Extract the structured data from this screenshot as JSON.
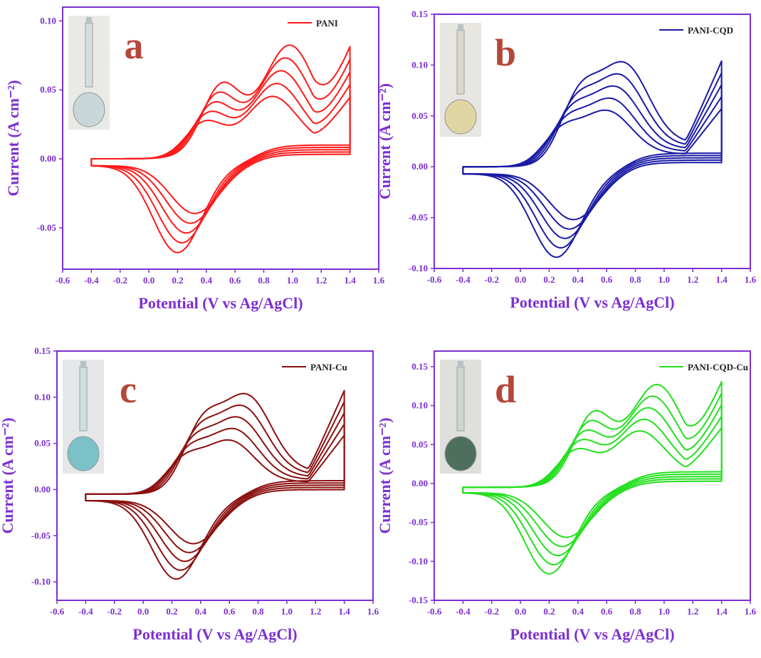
{
  "figure": {
    "xlabel": "Potential  (V vs Ag/AgCl)",
    "ylabel": "Current  (A  cm⁻²)",
    "axis_color": "#7b2fd1",
    "letter_color": "#b5473a"
  },
  "chart_data": [
    {
      "type": "line",
      "panel_letter": "a",
      "legend": "PANI",
      "color": "#ff1a1a",
      "xlim": [
        -0.6,
        1.6
      ],
      "ylim": [
        -0.08,
        0.11
      ],
      "xticks": [
        -0.6,
        -0.4,
        -0.2,
        0.0,
        0.2,
        0.4,
        0.6,
        0.8,
        1.0,
        1.2,
        1.4,
        1.6
      ],
      "yticks": [
        -0.05,
        0.0,
        0.05,
        0.1
      ],
      "xlabel": "Potential  (V vs Ag/AgCl)",
      "ylabel": "Current  (A  cm⁻²)",
      "cv": {
        "x_start": -0.4,
        "x_end": 1.4,
        "base_ox": 0.0,
        "base_red": -0.005,
        "cycles": 5,
        "ox_peak_1": [
          0.5,
          0.05
        ],
        "ox_peak_2": [
          0.98,
          0.075
        ],
        "red_peak": [
          0.2,
          -0.063
        ],
        "vertex": [
          1.4,
          0.088
        ]
      },
      "grid": false,
      "legend_position": "top-right"
    },
    {
      "type": "line",
      "panel_letter": "b",
      "legend": "PANI-CQD",
      "color": "#1a1aa6",
      "xlim": [
        -0.6,
        1.6
      ],
      "ylim": [
        -0.1,
        0.15
      ],
      "xticks": [
        -0.6,
        -0.4,
        -0.2,
        0.0,
        0.2,
        0.4,
        0.6,
        0.8,
        1.0,
        1.2,
        1.4,
        1.6
      ],
      "yticks": [
        -0.1,
        -0.05,
        0.0,
        0.05,
        0.1,
        0.15
      ],
      "xlabel": "Potential  (V vs Ag/AgCl)",
      "ylabel": "Current  (A  cm⁻²)",
      "cv": {
        "x_start": -0.4,
        "x_end": 1.4,
        "base_ox": 0.0,
        "base_red": -0.007,
        "cycles": 5,
        "ox_peak_1": [
          0.4,
          0.068
        ],
        "ox_peak_2": [
          0.72,
          0.092
        ],
        "red_peak": [
          0.25,
          -0.082
        ],
        "vertex": [
          1.4,
          0.113
        ]
      },
      "grid": false,
      "legend_position": "top-right"
    },
    {
      "type": "line",
      "panel_letter": "c",
      "legend": "PANI-Cu",
      "color": "#8b1010",
      "xlim": [
        -0.6,
        1.6
      ],
      "ylim": [
        -0.12,
        0.15
      ],
      "xticks": [
        -0.6,
        -0.4,
        -0.2,
        0.0,
        0.2,
        0.4,
        0.6,
        0.8,
        1.0,
        1.2,
        1.4,
        1.6
      ],
      "yticks": [
        -0.1,
        -0.05,
        0.0,
        0.05,
        0.1,
        0.15
      ],
      "xlabel": "Potential  (V vs Ag/AgCl)",
      "ylabel": "Current  (A  cm⁻²)",
      "cv": {
        "x_start": -0.4,
        "x_end": 1.4,
        "base_ox": -0.005,
        "base_red": -0.012,
        "cycles": 5,
        "ox_peak_1": [
          0.4,
          0.072
        ],
        "ox_peak_2": [
          0.72,
          0.097
        ],
        "red_peak": [
          0.23,
          -0.085
        ],
        "vertex": [
          1.39,
          0.117
        ]
      },
      "grid": false,
      "legend_position": "top-right"
    },
    {
      "type": "line",
      "panel_letter": "d",
      "legend": "PANI-CQD-Cu",
      "color": "#22e01e",
      "xlim": [
        -0.6,
        1.6
      ],
      "ylim": [
        -0.15,
        0.17
      ],
      "xticks": [
        -0.6,
        -0.4,
        -0.2,
        0.0,
        0.2,
        0.4,
        0.6,
        0.8,
        1.0,
        1.2,
        1.4,
        1.6
      ],
      "yticks": [
        -0.15,
        -0.1,
        -0.05,
        0.0,
        0.05,
        0.1,
        0.15
      ],
      "xlabel": "Potential  (V vs Ag/AgCl)",
      "ylabel": "Current  (A  cm⁻²)",
      "cv": {
        "x_start": -0.4,
        "x_end": 1.4,
        "base_ox": -0.005,
        "base_red": -0.012,
        "cycles": 5,
        "ox_peak_1": [
          0.5,
          0.09
        ],
        "ox_peak_2": [
          0.95,
          0.12
        ],
        "red_peak": [
          0.2,
          -0.104
        ],
        "vertex": [
          1.4,
          0.142
        ]
      },
      "grid": false,
      "legend_position": "top-right"
    }
  ]
}
